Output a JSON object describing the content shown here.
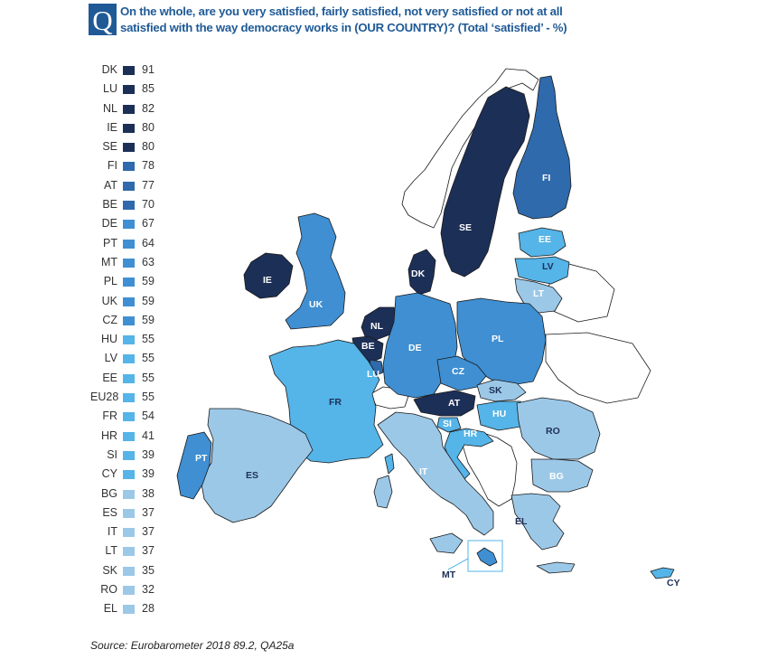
{
  "header": {
    "badge": "Q",
    "question": "On the whole, are you very satisfied, fairly satisfied, not very satisfied or not at all satisfied with the way democracy works in (OUR COUNTRY)? (Total ‘satisfied’ - %)"
  },
  "legend": [
    {
      "code": "DK",
      "value": "91"
    },
    {
      "code": "LU",
      "value": "85"
    },
    {
      "code": "NL",
      "value": "82"
    },
    {
      "code": "IE",
      "value": "80"
    },
    {
      "code": "SE",
      "value": "80"
    },
    {
      "code": "FI",
      "value": "78"
    },
    {
      "code": "AT",
      "value": "77"
    },
    {
      "code": "BE",
      "value": "70"
    },
    {
      "code": "DE",
      "value": "67"
    },
    {
      "code": "PT",
      "value": "64"
    },
    {
      "code": "MT",
      "value": "63"
    },
    {
      "code": "PL",
      "value": "59"
    },
    {
      "code": "UK",
      "value": "59"
    },
    {
      "code": "CZ",
      "value": "59"
    },
    {
      "code": "HU",
      "value": "55"
    },
    {
      "code": "LV",
      "value": "55"
    },
    {
      "code": "EE",
      "value": "55"
    },
    {
      "code": "EU28",
      "value": "55"
    },
    {
      "code": "FR",
      "value": "54"
    },
    {
      "code": "HR",
      "value": "41"
    },
    {
      "code": "SI",
      "value": "39"
    },
    {
      "code": "CY",
      "value": "39"
    },
    {
      "code": "BG",
      "value": "38"
    },
    {
      "code": "ES",
      "value": "37"
    },
    {
      "code": "IT",
      "value": "37"
    },
    {
      "code": "LT",
      "value": "37"
    },
    {
      "code": "SK",
      "value": "35"
    },
    {
      "code": "RO",
      "value": "32"
    },
    {
      "code": "EL",
      "value": "28"
    }
  ],
  "colors": {
    "dark": "#1c2f57",
    "medium_dark": "#2e6aac",
    "medium": "#3f8fd2",
    "light": "#55b4e8",
    "lightest": "#9cc8e8",
    "no_data": "#ffffff",
    "border": "#1a1a1a",
    "title": "#1f5a96"
  },
  "map": {
    "labels": {
      "FI": "FI",
      "SE": "SE",
      "EE": "EE",
      "LV": "LV",
      "LT": "LT",
      "DK": "DK",
      "IE": "IE",
      "UK": "UK",
      "NL": "NL",
      "BE": "BE",
      "LU": "LU",
      "DE": "DE",
      "PL": "PL",
      "CZ": "CZ",
      "SK": "SK",
      "AT": "AT",
      "HU": "HU",
      "SI": "SI",
      "HR": "HR",
      "RO": "RO",
      "BG": "BG",
      "FR": "FR",
      "ES": "ES",
      "PT": "PT",
      "IT": "IT",
      "EL": "EL",
      "MT": "MT",
      "CY": "CY"
    }
  },
  "source": "Source: Eurobarometer 2018 89.2, QA25a"
}
